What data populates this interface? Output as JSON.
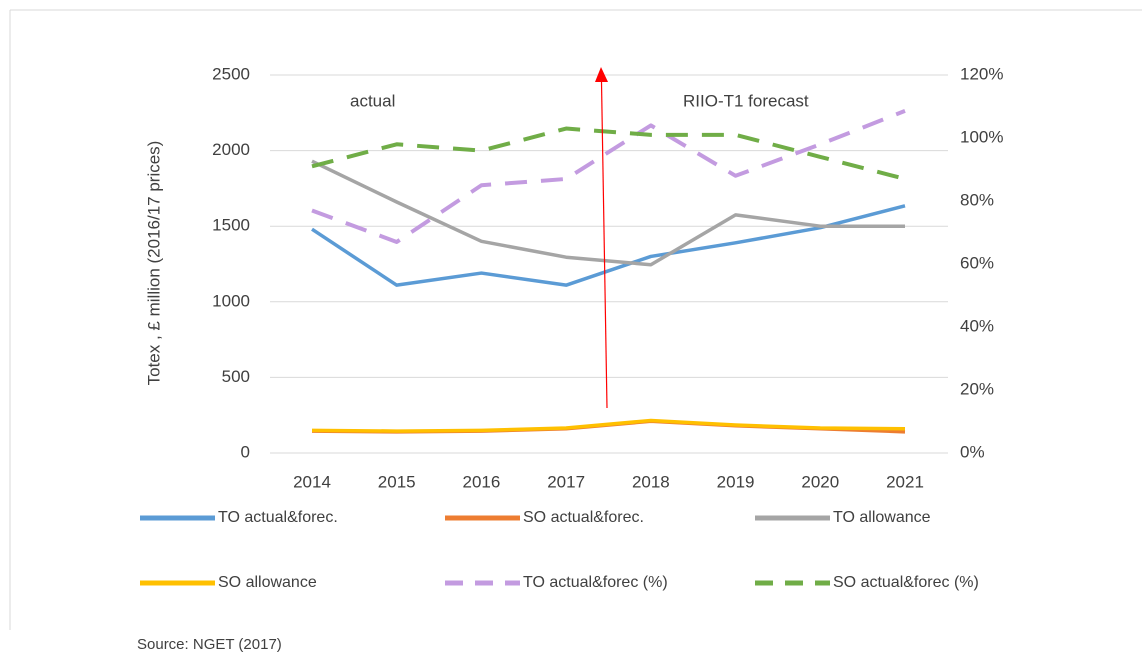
{
  "chart_data": {
    "type": "line",
    "y_label": "Totex , £ million (2016/17 prices)",
    "annotations": [
      "actual",
      "RIIO-T1 forecast"
    ],
    "source": "Source: NGET (2017)",
    "categories": [
      "2014",
      "2015",
      "2016",
      "2017",
      "2018",
      "2019",
      "2020",
      "2021"
    ],
    "ylim": [
      0,
      2500
    ],
    "yticks": [
      0,
      500,
      1000,
      1500,
      2000,
      2500
    ],
    "y2lim": [
      0,
      120
    ],
    "y2ticks": [
      {
        "value": 0,
        "label": "0%"
      },
      {
        "value": 20,
        "label": "20%"
      },
      {
        "value": 40,
        "label": "40%"
      },
      {
        "value": 60,
        "label": "60%"
      },
      {
        "value": 80,
        "label": "80%"
      },
      {
        "value": 100,
        "label": "100%"
      },
      {
        "value": 120,
        "label": "120%"
      }
    ],
    "grid": true,
    "series": [
      {
        "name": "TO actual&forec.",
        "color": "#5b9bd5",
        "dash": false,
        "values": [
          1480,
          1110,
          1190,
          1110,
          1300,
          1390,
          1490,
          1635
        ]
      },
      {
        "name": "SO actual&forec.",
        "color": "#ed7d31",
        "dash": false,
        "values": [
          145,
          140,
          145,
          160,
          210,
          180,
          160,
          140
        ]
      },
      {
        "name": "TO allowance",
        "color": "#a5a5a5",
        "dash": false,
        "values": [
          1930,
          1660,
          1400,
          1295,
          1245,
          1575,
          1500,
          1500
        ]
      },
      {
        "name": "SO allowance",
        "color": "#ffc000",
        "dash": false,
        "values": [
          150,
          145,
          150,
          165,
          215,
          185,
          165,
          160
        ]
      },
      {
        "name": "TO actual&forec (%)",
        "color": "#c39be0",
        "dash": true,
        "axis": "y2",
        "values": [
          77,
          67,
          85,
          87,
          104,
          88,
          98,
          108.6
        ]
      },
      {
        "name": "SO actual&forec (%)",
        "color": "#70ad47",
        "dash": true,
        "axis": "y2",
        "values": [
          91,
          98,
          96,
          103,
          101,
          101,
          94,
          87
        ]
      }
    ]
  }
}
